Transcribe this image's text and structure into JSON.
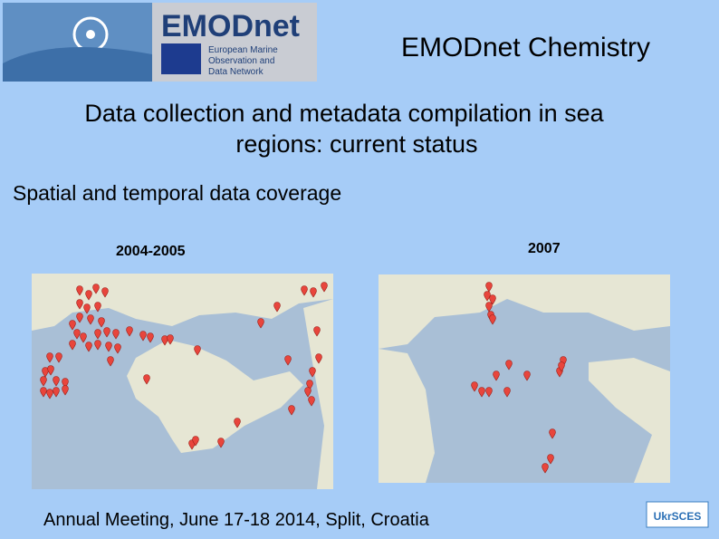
{
  "logo": {
    "name": "EMODnet",
    "lines": [
      "European Marine",
      "Observation and",
      "Data Network"
    ]
  },
  "header": {
    "title": "EMODnet Chemistry"
  },
  "heading": {
    "line1": "Data collection and metadata compilation in sea",
    "line2": "regions: current status"
  },
  "subheading": "Spatial and temporal data coverage",
  "maps": [
    {
      "label": "2004-2005"
    },
    {
      "label": "2007"
    }
  ],
  "footer": {
    "text": "Annual Meeting, June 17-18 2014, Split, Croatia",
    "logo": "UkrSCES"
  }
}
